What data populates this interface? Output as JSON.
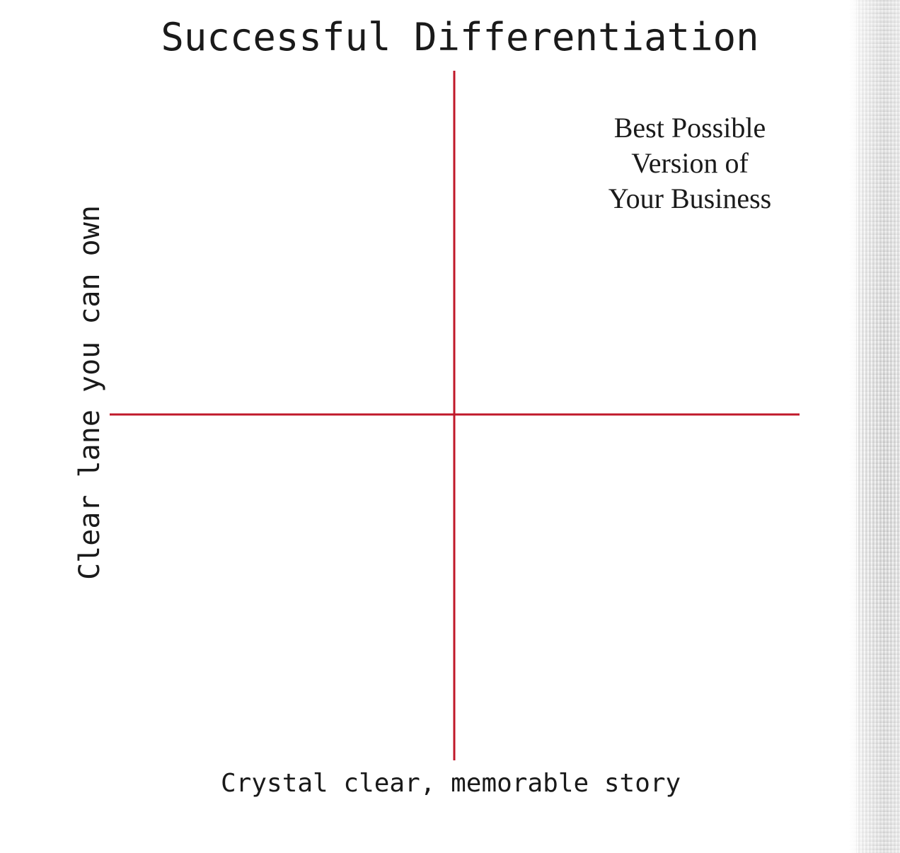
{
  "diagram": {
    "type": "quadrant",
    "title": "Successful Differentiation",
    "y_axis_label": "Clear lane you can own",
    "x_axis_label": "Crystal clear, memorable story",
    "quadrant_top_right": {
      "lines": [
        "Best Possible",
        "Version of",
        "Your Business"
      ]
    },
    "colors": {
      "axis_line": "#c0182a",
      "text": "#1a1a1a",
      "background": "#ffffff"
    }
  }
}
